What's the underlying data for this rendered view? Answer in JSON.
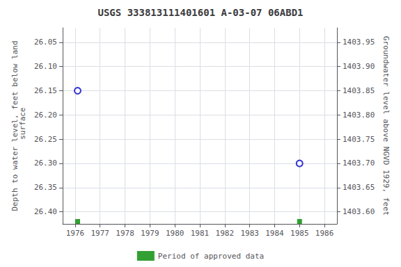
{
  "chart_data": {
    "type": "scatter",
    "title": "USGS 333813111401601 A-03-07 06ABD1",
    "y_label": "Depth to water level, feet below land\n surface",
    "y2_label": "Groundwater level above NGVD 1929, feet",
    "xlim": [
      1975.5,
      1986.5
    ],
    "xticks": [
      1976,
      1977,
      1978,
      1979,
      1980,
      1981,
      1982,
      1983,
      1984,
      1985,
      1986
    ],
    "ylim": [
      26.425,
      26.02
    ],
    "yticks": [
      26.05,
      {
        "value": 26.1,
        "label": "26.10"
      },
      26.15,
      {
        "value": 26.2,
        "label": "26.20"
      },
      26.25,
      {
        "value": 26.3,
        "label": "26.30"
      },
      26.35,
      {
        "value": 26.4,
        "label": "26.40"
      }
    ],
    "y2lim": [
      1403.575,
      1403.98
    ],
    "y2ticks": [
      1403.95,
      {
        "value": 1403.9,
        "label": "1403.90"
      },
      1403.85,
      {
        "value": 1403.8,
        "label": "1403.80"
      },
      1403.75,
      {
        "value": 1403.7,
        "label": "1403.70"
      },
      1403.65,
      {
        "value": 1403.6,
        "label": "1403.60"
      }
    ],
    "series": [
      {
        "x": [
          1976.1,
          1985.0
        ],
        "values": [
          26.15,
          26.3
        ],
        "color": "#0000cc",
        "marker": "open_circle"
      },
      {
        "name": "Period of approved data",
        "x": [
          1976.1,
          1985.0
        ],
        "values": [
          26.42,
          26.42
        ],
        "color": "#008800",
        "marker": "square"
      }
    ],
    "grid": true,
    "legend": "bottom"
  }
}
